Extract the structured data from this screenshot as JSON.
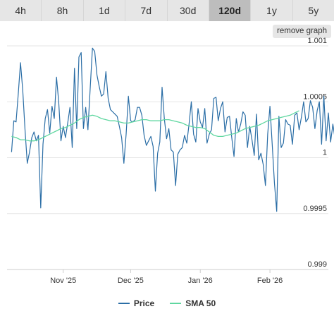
{
  "tabs": [
    {
      "label": "4h",
      "active": false
    },
    {
      "label": "8h",
      "active": false
    },
    {
      "label": "1d",
      "active": false
    },
    {
      "label": "7d",
      "active": false
    },
    {
      "label": "30d",
      "active": false
    },
    {
      "label": "120d",
      "active": true
    },
    {
      "label": "1y",
      "active": false
    },
    {
      "label": "5y",
      "active": false
    }
  ],
  "remove_graph_label": "remove graph",
  "colors": {
    "price": "#2b6ea6",
    "sma": "#5fd7a0",
    "grid": "#e6e6e6",
    "axis_text": "#333333"
  },
  "chart_data": {
    "type": "line",
    "title": "",
    "xlabel": "",
    "ylabel": "",
    "ylim": [
      0.999,
      1.001
    ],
    "y_ticks": [
      {
        "value": 0.999,
        "label": "0.999"
      },
      {
        "value": 0.9995,
        "label": "0.9995"
      },
      {
        "value": 1.0,
        "label": "1"
      },
      {
        "value": 1.0005,
        "label": "1.0005"
      },
      {
        "value": 1.001,
        "label": "1.001"
      }
    ],
    "x_range": [
      "2025-10-07",
      "2026-02-27"
    ],
    "x_ticks": [
      {
        "date": "2025-11-01",
        "label": "Nov '25"
      },
      {
        "date": "2025-12-01",
        "label": "Dec '25"
      },
      {
        "date": "2026-01-01",
        "label": "Jan '26"
      },
      {
        "date": "2026-02-01",
        "label": "Feb '26"
      }
    ],
    "legend": {
      "position": "bottom"
    },
    "series": [
      {
        "name": "Price",
        "start_date": "2025-10-09",
        "interval": "1 day",
        "values": [
          1.00005,
          1.00033,
          1.00032,
          1.00057,
          1.00085,
          1.0006,
          1.00025,
          0.99995,
          1.00005,
          1.00018,
          1.00023,
          1.00015,
          1.0002,
          0.99955,
          1.00012,
          1.00035,
          1.00043,
          1.00022,
          1.00046,
          1.00035,
          1.00072,
          1.0005,
          1.00015,
          1.00028,
          1.00018,
          1.00031,
          1.00045,
          1.00009,
          1.0008,
          1.00026,
          1.0009,
          1.00094,
          1.00026,
          1.00045,
          1.00025,
          1.00062,
          1.00098,
          1.00095,
          1.00074,
          1.00064,
          1.00055,
          1.00057,
          1.00077,
          1.00053,
          1.00043,
          1.00041,
          1.00039,
          1.00037,
          1.00028,
          1.00018,
          0.99995,
          1.00021,
          1.00055,
          1.00033,
          1.00032,
          1.00034,
          1.00045,
          1.00045,
          1.00038,
          1.0002,
          1.00011,
          1.00015,
          1.00019,
          1.0001,
          0.9997,
          1.00004,
          1.00014,
          1.00063,
          1.00035,
          1.00017,
          1.00026,
          1.00007,
          1.00005,
          0.99975,
          1.00003,
          1.00007,
          1.00009,
          1.0002,
          1.00013,
          1.0003,
          1.0005,
          1.00021,
          1.00014,
          1.00044,
          1.00032,
          1.00027,
          1.00044,
          1.00013,
          1.00021,
          1.00025,
          1.00053,
          1.00054,
          1.00033,
          1.00044,
          1.0005,
          1.00023,
          1.00036,
          1.00037,
          1.00018,
          1.00001,
          1.00035,
          1.00023,
          1.0003,
          1.00041,
          1.00038,
          1.00009,
          1.00028,
          1.00016,
          1.00002,
          1.00039,
          0.99998,
          1.00004,
          0.99994,
          0.99975,
          1.00021,
          1.00046,
          1.00012,
          0.99977,
          0.99952,
          1.00037,
          1.00009,
          1.00013,
          1.00034,
          1.0003,
          1.00029,
          1.00012,
          1.00038,
          1.0004,
          1.00025,
          1.00036,
          1.0005,
          1.00032,
          1.00035,
          1.00051,
          1.00045,
          1.00026,
          1.00042,
          1.0005,
          1.00012,
          1.00055,
          1.00015,
          1.0004,
          1.00014,
          1.0003,
          1.00016,
          1.00045,
          1.00028,
          1.00011,
          1.00041,
          1.00015,
          1.00052,
          1.00048,
          1.00021,
          1.00009,
          1.00045,
          1.00008,
          1.00035,
          1.00033,
          1.0004,
          1.00036,
          1.00017,
          1.00055,
          1.00043,
          1.00025,
          1.0004,
          1.0003,
          1.00025,
          1.00038,
          1.00016,
          1.00032,
          1.00042,
          1.00036,
          1.00053,
          1.0005,
          1.00042,
          1.00027,
          1.00049,
          1.00045,
          1.00028,
          1.00026,
          1.00041,
          1.00052,
          1.00026,
          1.00022,
          1.00047,
          1.00038,
          1.00054,
          1.00034,
          1.00024,
          1.00038,
          1.00051,
          1.00076,
          1.00047,
          1.00059,
          1.00038,
          1.00052,
          1.0003
        ]
      },
      {
        "name": "SMA 50",
        "start_date": "2025-10-09",
        "interval": "2 days",
        "values": [
          1.00019,
          1.00018,
          1.00016,
          1.00016,
          1.00015,
          1.00015,
          1.00016,
          1.00018,
          1.0002,
          1.00022,
          1.00024,
          1.00026,
          1.00027,
          1.00029,
          1.00031,
          1.00034,
          1.00036,
          1.00037,
          1.00038,
          1.00037,
          1.00035,
          1.00034,
          1.00033,
          1.00033,
          1.00032,
          1.00031,
          1.00031,
          1.00032,
          1.00033,
          1.00034,
          1.00034,
          1.00033,
          1.00033,
          1.00033,
          1.00034,
          1.00034,
          1.00033,
          1.00032,
          1.00031,
          1.00029,
          1.00028,
          1.00027,
          1.00027,
          1.00026,
          1.00023,
          1.0002,
          1.00019,
          1.00019,
          1.0002,
          1.00021,
          1.00022,
          1.00024,
          1.00026,
          1.00027,
          1.00028,
          1.00029,
          1.00031,
          1.00033,
          1.00034,
          1.00035,
          1.00036,
          1.00037,
          1.00038,
          1.0004,
          1.00042
        ]
      }
    ]
  }
}
